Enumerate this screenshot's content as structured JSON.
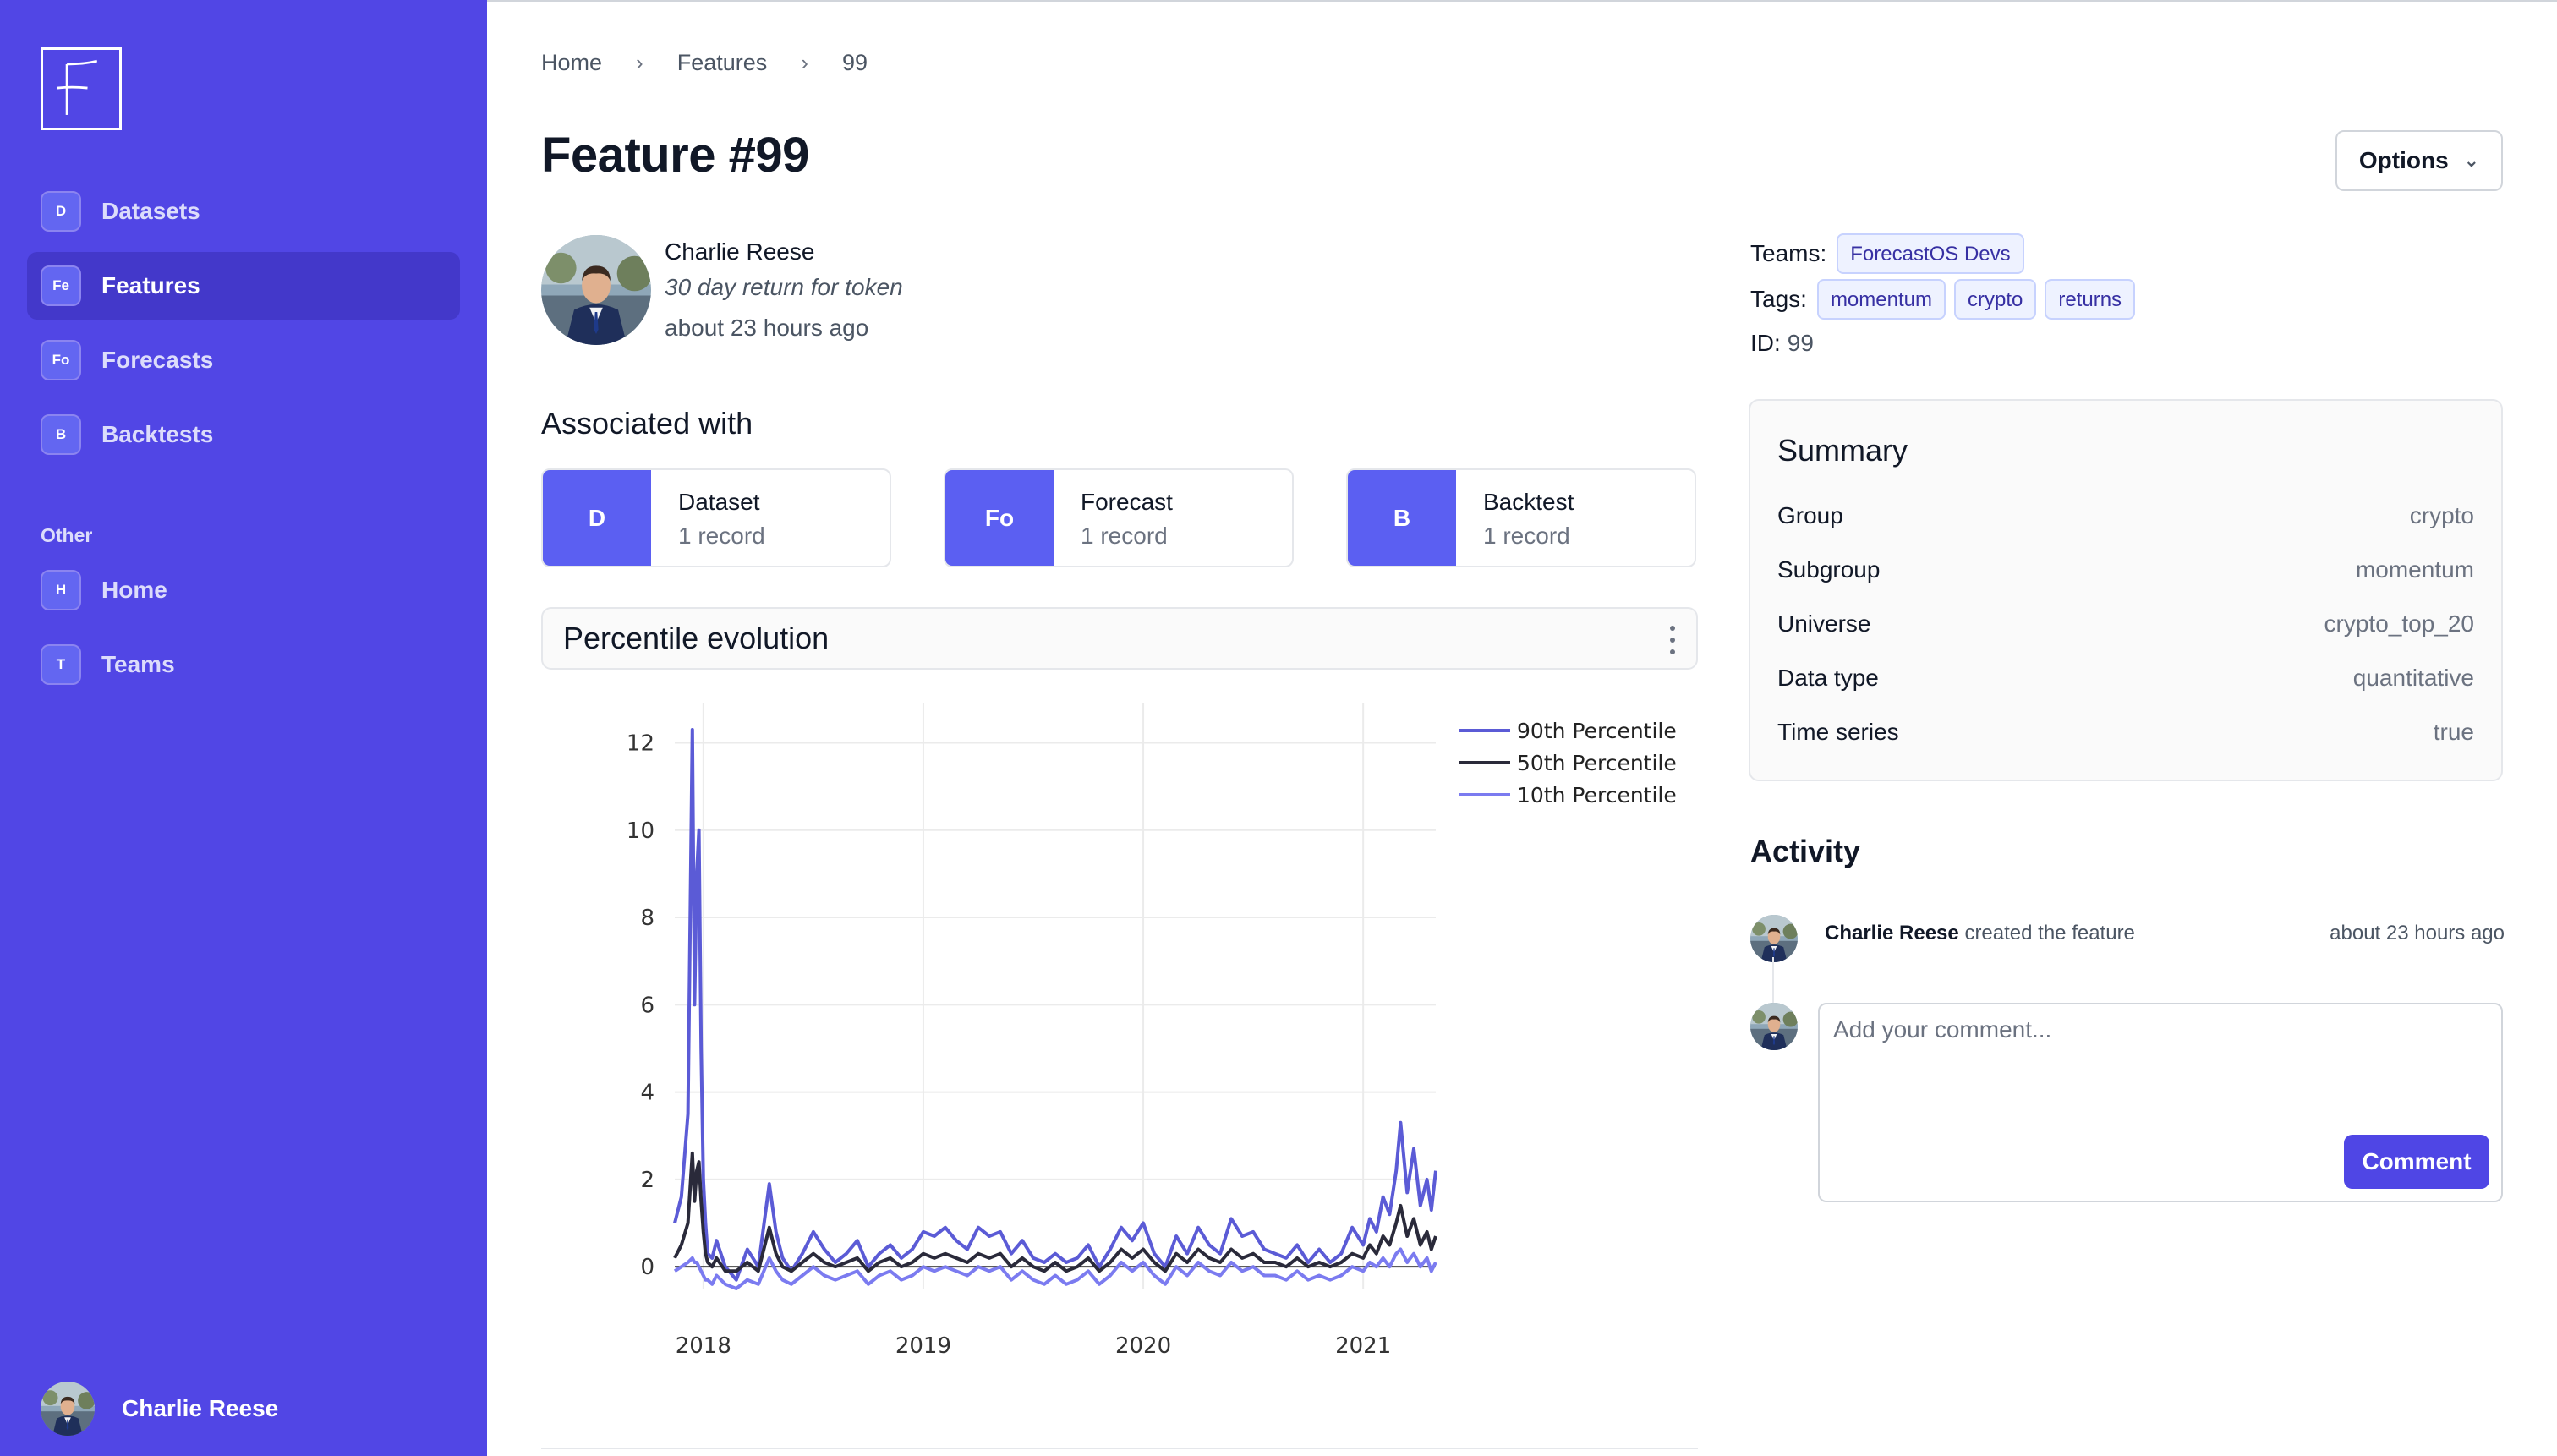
{
  "app": {
    "logo_letter": "F"
  },
  "sidebar": {
    "items": [
      {
        "badge": "D",
        "label": "Datasets",
        "active": false
      },
      {
        "badge": "Fe",
        "label": "Features",
        "active": true
      },
      {
        "badge": "Fo",
        "label": "Forecasts",
        "active": false
      },
      {
        "badge": "B",
        "label": "Backtests",
        "active": false
      }
    ],
    "other_label": "Other",
    "other_items": [
      {
        "badge": "H",
        "label": "Home"
      },
      {
        "badge": "T",
        "label": "Teams"
      }
    ],
    "user_name": "Charlie Reese"
  },
  "breadcrumb": {
    "items": [
      "Home",
      "Features",
      "99"
    ],
    "separator": "›"
  },
  "page": {
    "title": "Feature #99",
    "options_label": "Options"
  },
  "author": {
    "name": "Charlie Reese",
    "description": "30 day return for token",
    "time": "about 23 hours ago"
  },
  "associated": {
    "title": "Associated with",
    "cards": [
      {
        "badge": "D",
        "name": "Dataset",
        "count": "1 record"
      },
      {
        "badge": "Fo",
        "name": "Forecast",
        "count": "1 record"
      },
      {
        "badge": "B",
        "name": "Backtest",
        "count": "1 record"
      }
    ]
  },
  "chart_panel": {
    "title": "Percentile evolution"
  },
  "chart_data": {
    "type": "line",
    "title": "",
    "xlabel": "",
    "ylabel": "",
    "xlim": [
      2017.87,
      2021.33
    ],
    "ylim": [
      -0.5,
      12.9
    ],
    "x_ticks": [
      2018,
      2019,
      2020,
      2021
    ],
    "x_tick_labels": [
      "2018",
      "2019",
      "2020",
      "2021"
    ],
    "y_ticks": [
      0,
      2,
      4,
      6,
      8,
      10,
      12
    ],
    "grid": true,
    "legend_position": "top-right",
    "x": [
      2017.87,
      2017.9,
      2017.93,
      2017.95,
      2017.96,
      2017.97,
      2017.98,
      2017.99,
      2018.0,
      2018.01,
      2018.02,
      2018.04,
      2018.06,
      2018.1,
      2018.15,
      2018.2,
      2018.25,
      2018.3,
      2018.33,
      2018.36,
      2018.4,
      2018.45,
      2018.5,
      2018.55,
      2018.6,
      2018.65,
      2018.7,
      2018.75,
      2018.8,
      2018.85,
      2018.9,
      2018.95,
      2019.0,
      2019.05,
      2019.1,
      2019.15,
      2019.2,
      2019.25,
      2019.3,
      2019.35,
      2019.4,
      2019.45,
      2019.5,
      2019.55,
      2019.6,
      2019.65,
      2019.7,
      2019.75,
      2019.8,
      2019.85,
      2019.9,
      2019.95,
      2020.0,
      2020.05,
      2020.1,
      2020.15,
      2020.2,
      2020.25,
      2020.3,
      2020.35,
      2020.4,
      2020.45,
      2020.5,
      2020.55,
      2020.6,
      2020.65,
      2020.7,
      2020.75,
      2020.8,
      2020.85,
      2020.9,
      2020.95,
      2021.0,
      2021.03,
      2021.06,
      2021.09,
      2021.12,
      2021.15,
      2021.17,
      2021.2,
      2021.23,
      2021.26,
      2021.29,
      2021.31,
      2021.33
    ],
    "series": [
      {
        "name": "90th Percentile",
        "color": "#5b5bd6",
        "values": [
          1.0,
          1.6,
          3.5,
          12.3,
          6.0,
          9.0,
          10.0,
          5.0,
          2.0,
          1.0,
          0.3,
          0.2,
          0.6,
          0.0,
          -0.3,
          0.4,
          0.0,
          1.9,
          0.8,
          0.2,
          -0.1,
          0.3,
          0.8,
          0.4,
          0.1,
          0.3,
          0.6,
          0.0,
          0.3,
          0.5,
          0.2,
          0.4,
          0.8,
          0.7,
          0.9,
          0.6,
          0.4,
          0.9,
          0.7,
          0.8,
          0.3,
          0.6,
          0.2,
          0.1,
          0.3,
          0.1,
          0.2,
          0.5,
          0.0,
          0.4,
          0.9,
          0.6,
          1.0,
          0.3,
          0.0,
          0.7,
          0.3,
          0.9,
          0.5,
          0.3,
          1.1,
          0.7,
          0.8,
          0.4,
          0.3,
          0.2,
          0.5,
          0.1,
          0.4,
          0.1,
          0.3,
          0.9,
          0.5,
          1.1,
          0.8,
          1.6,
          1.2,
          2.2,
          3.3,
          1.7,
          2.7,
          1.4,
          2.0,
          1.3,
          2.2
        ]
      },
      {
        "name": "50th Percentile",
        "color": "#2a2a3a",
        "values": [
          0.2,
          0.5,
          1.0,
          2.6,
          1.5,
          2.2,
          2.4,
          1.5,
          0.8,
          0.3,
          0.1,
          0.0,
          0.2,
          -0.1,
          -0.1,
          0.1,
          -0.1,
          0.9,
          0.3,
          0.0,
          -0.1,
          0.1,
          0.3,
          0.1,
          0.0,
          0.1,
          0.2,
          -0.1,
          0.1,
          0.2,
          0.0,
          0.1,
          0.3,
          0.2,
          0.3,
          0.2,
          0.1,
          0.3,
          0.2,
          0.3,
          0.0,
          0.2,
          0.0,
          -0.1,
          0.1,
          -0.1,
          0.0,
          0.2,
          -0.1,
          0.1,
          0.4,
          0.2,
          0.4,
          0.1,
          -0.1,
          0.3,
          0.1,
          0.4,
          0.2,
          0.1,
          0.4,
          0.2,
          0.3,
          0.1,
          0.1,
          0.0,
          0.2,
          0.0,
          0.1,
          0.0,
          0.1,
          0.3,
          0.2,
          0.5,
          0.3,
          0.7,
          0.5,
          1.0,
          1.4,
          0.7,
          1.1,
          0.5,
          0.8,
          0.4,
          0.7
        ]
      },
      {
        "name": "10th Percentile",
        "color": "#7b7bf0",
        "values": [
          -0.1,
          0.0,
          0.1,
          0.2,
          0.1,
          0.1,
          0.0,
          -0.1,
          -0.2,
          -0.3,
          -0.3,
          -0.4,
          -0.2,
          -0.4,
          -0.5,
          -0.3,
          -0.4,
          0.2,
          -0.1,
          -0.3,
          -0.4,
          -0.2,
          0.0,
          -0.2,
          -0.3,
          -0.2,
          -0.1,
          -0.4,
          -0.2,
          -0.1,
          -0.3,
          -0.2,
          0.0,
          -0.1,
          0.0,
          -0.1,
          -0.2,
          0.0,
          -0.1,
          0.0,
          -0.3,
          -0.1,
          -0.3,
          -0.4,
          -0.2,
          -0.4,
          -0.3,
          -0.1,
          -0.4,
          -0.2,
          0.1,
          -0.1,
          0.1,
          -0.2,
          -0.4,
          0.0,
          -0.2,
          0.1,
          -0.1,
          -0.2,
          0.1,
          -0.1,
          0.0,
          -0.2,
          -0.2,
          -0.3,
          -0.1,
          -0.3,
          -0.2,
          -0.3,
          -0.2,
          0.0,
          -0.1,
          0.1,
          0.0,
          0.2,
          0.0,
          0.3,
          0.4,
          0.1,
          0.3,
          0.0,
          0.2,
          -0.1,
          0.1
        ]
      }
    ]
  },
  "meta": {
    "teams_label": "Teams:",
    "teams": [
      "ForecastOS Devs"
    ],
    "tags_label": "Tags:",
    "tags": [
      "momentum",
      "crypto",
      "returns"
    ],
    "id_label": "ID:",
    "id_value": "99"
  },
  "summary": {
    "title": "Summary",
    "rows": [
      {
        "key": "Group",
        "value": "crypto"
      },
      {
        "key": "Subgroup",
        "value": "momentum"
      },
      {
        "key": "Universe",
        "value": "crypto_top_20"
      },
      {
        "key": "Data type",
        "value": "quantitative"
      },
      {
        "key": "Time series",
        "value": "true"
      }
    ]
  },
  "activity": {
    "title": "Activity",
    "items": [
      {
        "user": "Charlie Reese",
        "action": "created the feature",
        "time": "about 23 hours ago"
      }
    ],
    "comment_placeholder": "Add your comment...",
    "comment_button": "Comment"
  }
}
